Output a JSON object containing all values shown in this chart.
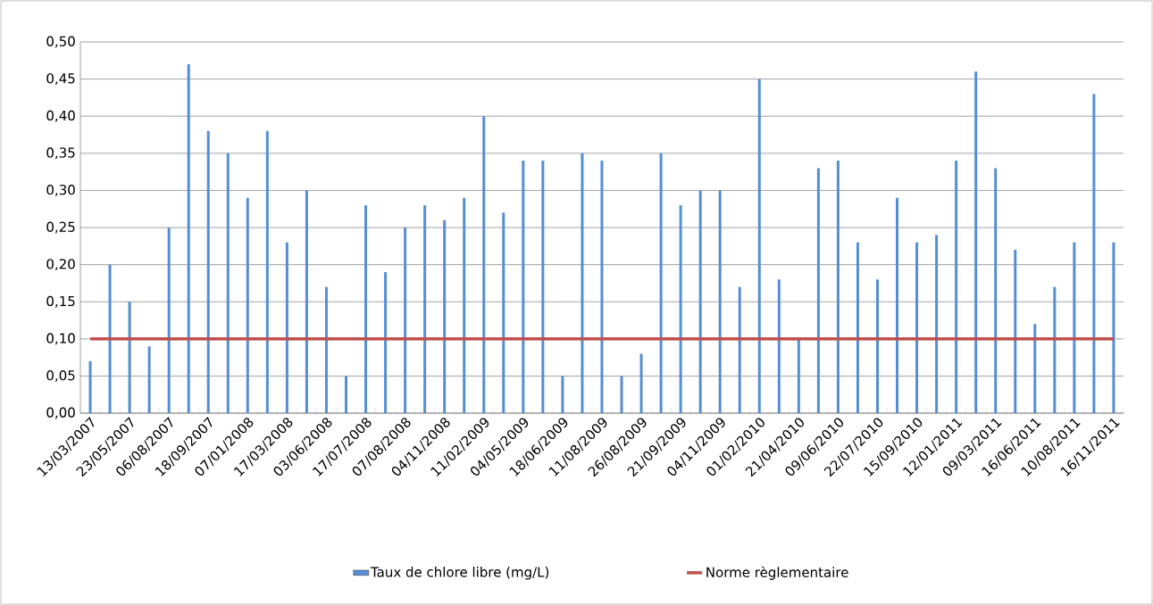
{
  "chart_data": {
    "type": "bar",
    "categories": [
      "13/03/2007",
      null,
      "23/05/2007",
      null,
      "06/08/2007",
      null,
      "18/09/2007",
      null,
      "07/01/2008",
      null,
      "17/03/2008",
      null,
      "03/06/2008",
      null,
      "17/07/2008",
      null,
      "07/08/2008",
      null,
      "04/11/2008",
      null,
      "11/02/2009",
      null,
      "04/05/2009",
      null,
      "18/06/2009",
      null,
      "11/08/2009",
      null,
      "26/08/2009",
      null,
      "21/09/2009",
      null,
      "04/11/2009",
      null,
      "01/02/2010",
      null,
      "21/04/2010",
      null,
      "09/06/2010",
      null,
      "22/07/2010",
      null,
      "15/09/2010",
      null,
      "12/01/2011",
      null,
      "09/03/2011",
      null,
      "16/06/2011",
      null,
      "10/08/2011",
      null,
      "16/11/2011"
    ],
    "series": [
      {
        "name": "Taux de chlore libre (mg/L)",
        "color": "#558ed5",
        "values": [
          0.07,
          0.2,
          0.15,
          0.09,
          0.25,
          0.47,
          0.38,
          0.35,
          0.29,
          0.38,
          0.23,
          0.3,
          0.17,
          0.05,
          0.28,
          0.19,
          0.25,
          0.28,
          0.26,
          0.29,
          0.4,
          0.27,
          0.34,
          0.34,
          0.05,
          0.35,
          0.34,
          0.05,
          0.08,
          0.35,
          0.28,
          0.3,
          0.3,
          0.17,
          0.45,
          0.18,
          0.1,
          0.33,
          0.34,
          0.23,
          0.18,
          0.29,
          0.23,
          0.24,
          0.34,
          0.46,
          0.33,
          0.22,
          0.12,
          0.17,
          0.23,
          0.43,
          0.23
        ]
      },
      {
        "name": "Norme règlementaire",
        "type": "line",
        "color": "#c0504d",
        "values": [
          0.1,
          0.1,
          0.1,
          0.1,
          0.1,
          0.1,
          0.1,
          0.1,
          0.1,
          0.1,
          0.1,
          0.1,
          0.1,
          0.1,
          0.1,
          0.1,
          0.1,
          0.1,
          0.1,
          0.1,
          0.1,
          0.1,
          0.1,
          0.1,
          0.1,
          0.1,
          0.1,
          0.1,
          0.1,
          0.1,
          0.1,
          0.1,
          0.1,
          0.1,
          0.1,
          0.1,
          0.1,
          0.1,
          0.1,
          0.1,
          0.1,
          0.1,
          0.1,
          0.1,
          0.1,
          0.1,
          0.1,
          0.1,
          0.1,
          0.1,
          0.1,
          0.1,
          0.1
        ]
      }
    ],
    "ylim": [
      0,
      0.5
    ],
    "yticks": [
      {
        "value": 0,
        "label": "0,00"
      },
      {
        "value": 0.05,
        "label": "0,05"
      },
      {
        "value": 0.1,
        "label": "0,10"
      },
      {
        "value": 0.15,
        "label": "0,15"
      },
      {
        "value": 0.2,
        "label": "0,20"
      },
      {
        "value": 0.25,
        "label": "0,25"
      },
      {
        "value": 0.3,
        "label": "0,30"
      },
      {
        "value": 0.35,
        "label": "0,35"
      },
      {
        "value": 0.4,
        "label": "0,40"
      },
      {
        "value": 0.45,
        "label": "0,45"
      },
      {
        "value": 0.5,
        "label": "0,50"
      }
    ],
    "grid": "y",
    "legend": "bottom"
  }
}
